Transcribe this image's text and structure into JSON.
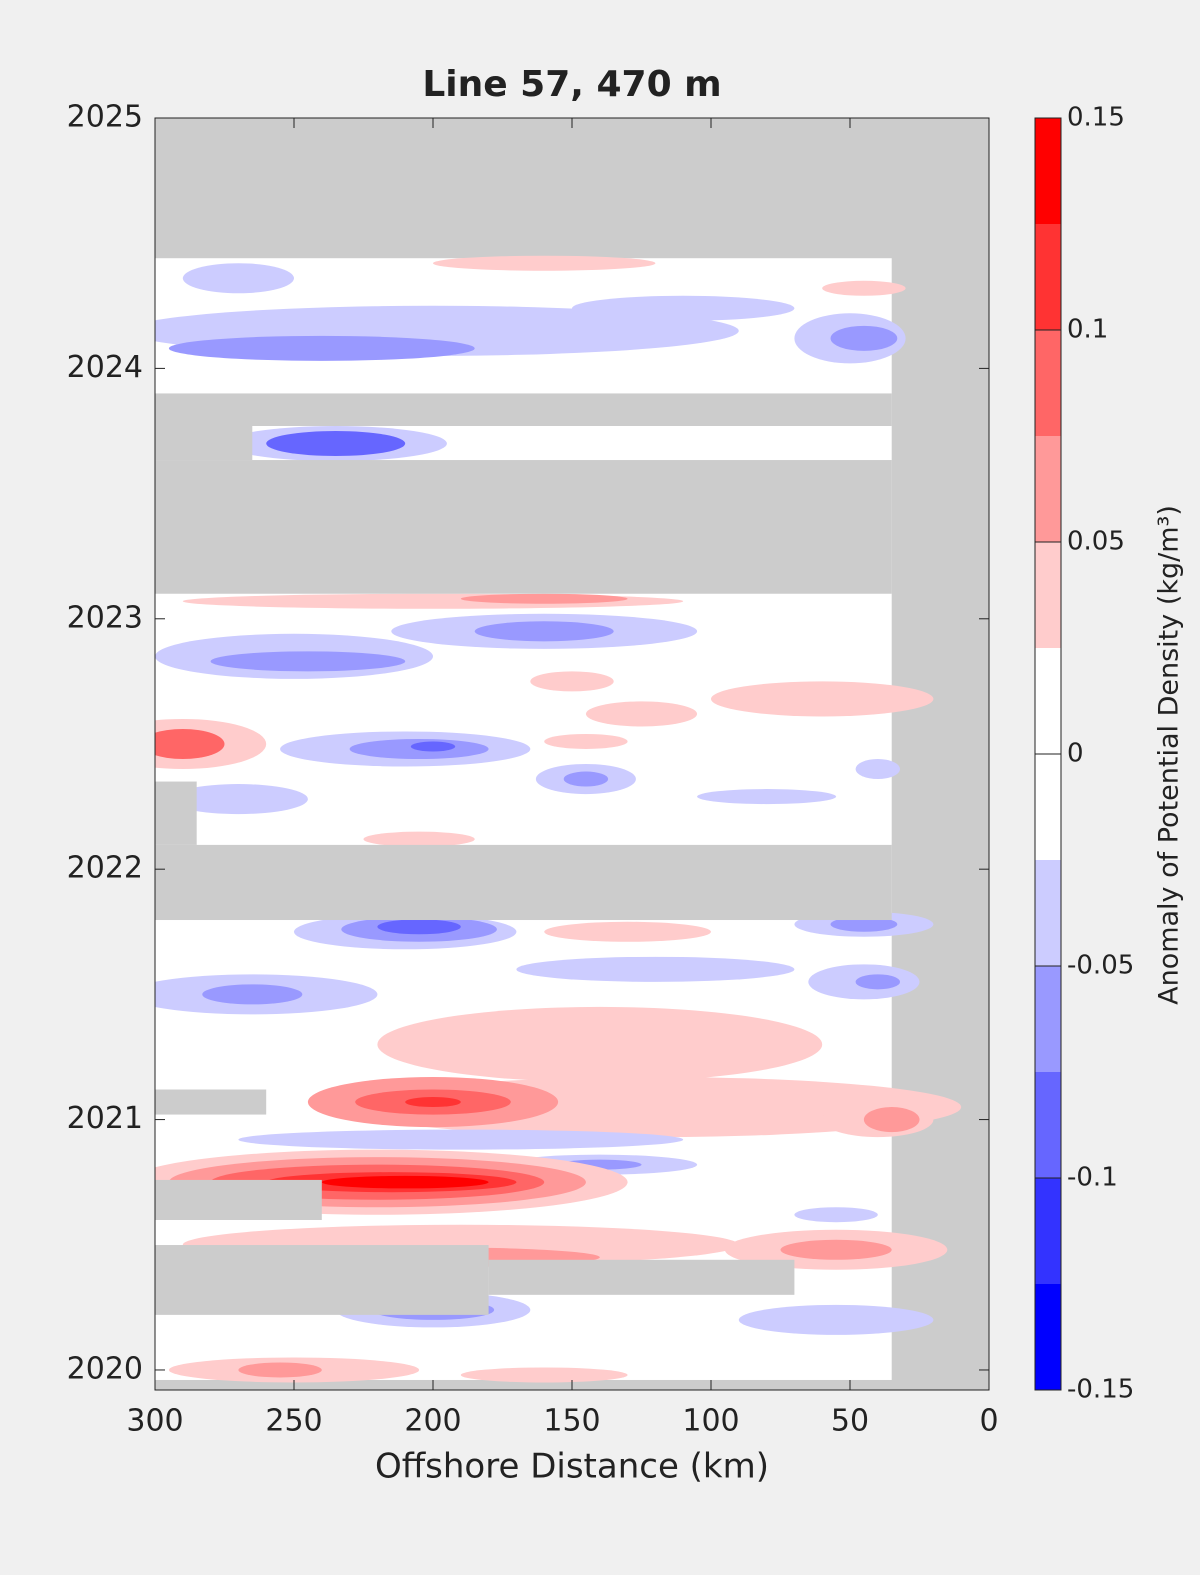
{
  "chart_data": {
    "type": "contourf",
    "title": "Line 57, 470 m",
    "xlabel": "Offshore Distance (km)",
    "xlim": [
      300,
      0
    ],
    "xticks": [
      300,
      250,
      200,
      150,
      100,
      50,
      0
    ],
    "ylim": [
      2019.92,
      2025
    ],
    "yticks": [
      2020,
      2021,
      2022,
      2023,
      2024,
      2025
    ],
    "colorbar": {
      "label": "Anomaly of Potential Density (kg/m³)",
      "clim": [
        -0.15,
        0.15
      ],
      "ticks": [
        -0.15,
        -0.1,
        -0.05,
        0,
        0.05,
        0.1,
        0.15
      ],
      "colors": [
        "#0000ff",
        "#3333ff",
        "#6666ff",
        "#9999ff",
        "#ccccff",
        "#ffffff",
        "#ffffff",
        "#ffcccc",
        "#ff9999",
        "#ff6666",
        "#ff3333",
        "#ff0000"
      ]
    },
    "nodata_color": "#cccccc",
    "coverage": {
      "x": [
        300,
        35
      ],
      "y": [
        2019.96,
        2024.44
      ]
    },
    "nodata": [
      {
        "x": [
          300,
          35
        ],
        "y": [
          2023.77,
          2023.9
        ]
      },
      {
        "x": [
          300,
          265
        ],
        "y": [
          2023.634,
          2023.77
        ]
      },
      {
        "x": [
          300,
          35
        ],
        "y": [
          2023.1,
          2023.634
        ]
      },
      {
        "x": [
          300,
          35
        ],
        "y": [
          2021.797,
          2022.097
        ]
      },
      {
        "x": [
          300,
          285
        ],
        "y": [
          2022.097,
          2022.35
        ]
      },
      {
        "x": [
          300,
          260
        ],
        "y": [
          2021.02,
          2021.12
        ]
      },
      {
        "x": [
          300,
          240
        ],
        "y": [
          2020.599,
          2020.759
        ]
      },
      {
        "x": [
          300,
          180
        ],
        "y": [
          2020.22,
          2020.499
        ]
      },
      {
        "x": [
          180,
          70
        ],
        "y": [
          2020.3,
          2020.44
        ]
      }
    ],
    "patches": [
      {
        "x": 200,
        "y": 2024.15,
        "rx": 110,
        "ry": 0.1,
        "value": -0.04
      },
      {
        "x": 240,
        "y": 2024.08,
        "rx": 55,
        "ry": 0.05,
        "value": -0.06
      },
      {
        "x": 270,
        "y": 2024.36,
        "rx": 20,
        "ry": 0.06,
        "value": -0.04
      },
      {
        "x": 50,
        "y": 2024.12,
        "rx": 20,
        "ry": 0.1,
        "value": -0.04
      },
      {
        "x": 45,
        "y": 2024.12,
        "rx": 12,
        "ry": 0.05,
        "value": -0.06
      },
      {
        "x": 160,
        "y": 2024.42,
        "rx": 40,
        "ry": 0.03,
        "value": 0.04
      },
      {
        "x": 45,
        "y": 2024.32,
        "rx": 15,
        "ry": 0.03,
        "value": 0.04
      },
      {
        "x": 110,
        "y": 2024.24,
        "rx": 40,
        "ry": 0.05,
        "value": -0.04
      },
      {
        "x": 235,
        "y": 2023.7,
        "rx": 40,
        "ry": 0.07,
        "value": -0.04
      },
      {
        "x": 235,
        "y": 2023.7,
        "rx": 25,
        "ry": 0.05,
        "value": -0.09
      },
      {
        "x": 200,
        "y": 2023.07,
        "rx": 90,
        "ry": 0.03,
        "value": 0.04
      },
      {
        "x": 160,
        "y": 2023.08,
        "rx": 30,
        "ry": 0.02,
        "value": 0.06
      },
      {
        "x": 160,
        "y": 2022.95,
        "rx": 55,
        "ry": 0.07,
        "value": -0.04
      },
      {
        "x": 160,
        "y": 2022.95,
        "rx": 25,
        "ry": 0.04,
        "value": -0.06
      },
      {
        "x": 250,
        "y": 2022.85,
        "rx": 50,
        "ry": 0.09,
        "value": -0.04
      },
      {
        "x": 245,
        "y": 2022.83,
        "rx": 35,
        "ry": 0.04,
        "value": -0.06
      },
      {
        "x": 290,
        "y": 2022.5,
        "rx": 30,
        "ry": 0.1,
        "value": 0.04
      },
      {
        "x": 290,
        "y": 2022.5,
        "rx": 15,
        "ry": 0.06,
        "value": 0.08
      },
      {
        "x": 210,
        "y": 2022.48,
        "rx": 45,
        "ry": 0.07,
        "value": -0.04
      },
      {
        "x": 205,
        "y": 2022.48,
        "rx": 25,
        "ry": 0.04,
        "value": -0.06
      },
      {
        "x": 200,
        "y": 2022.49,
        "rx": 8,
        "ry": 0.02,
        "value": -0.09
      },
      {
        "x": 150,
        "y": 2022.75,
        "rx": 15,
        "ry": 0.04,
        "value": 0.04
      },
      {
        "x": 60,
        "y": 2022.68,
        "rx": 40,
        "ry": 0.07,
        "value": 0.04
      },
      {
        "x": 125,
        "y": 2022.62,
        "rx": 20,
        "ry": 0.05,
        "value": 0.04
      },
      {
        "x": 145,
        "y": 2022.51,
        "rx": 15,
        "ry": 0.03,
        "value": 0.04
      },
      {
        "x": 145,
        "y": 2022.36,
        "rx": 18,
        "ry": 0.06,
        "value": -0.04
      },
      {
        "x": 145,
        "y": 2022.36,
        "rx": 8,
        "ry": 0.03,
        "value": -0.06
      },
      {
        "x": 80,
        "y": 2022.29,
        "rx": 25,
        "ry": 0.03,
        "value": -0.04
      },
      {
        "x": 270,
        "y": 2022.28,
        "rx": 25,
        "ry": 0.06,
        "value": -0.04
      },
      {
        "x": 40,
        "y": 2022.4,
        "rx": 8,
        "ry": 0.04,
        "value": -0.04
      },
      {
        "x": 205,
        "y": 2022.12,
        "rx": 20,
        "ry": 0.03,
        "value": 0.04
      },
      {
        "x": 210,
        "y": 2021.75,
        "rx": 40,
        "ry": 0.07,
        "value": -0.04
      },
      {
        "x": 205,
        "y": 2021.76,
        "rx": 28,
        "ry": 0.05,
        "value": -0.06
      },
      {
        "x": 205,
        "y": 2021.77,
        "rx": 15,
        "ry": 0.03,
        "value": -0.09
      },
      {
        "x": 120,
        "y": 2021.6,
        "rx": 50,
        "ry": 0.05,
        "value": -0.04
      },
      {
        "x": 45,
        "y": 2021.78,
        "rx": 25,
        "ry": 0.05,
        "value": -0.04
      },
      {
        "x": 45,
        "y": 2021.78,
        "rx": 12,
        "ry": 0.03,
        "value": -0.06
      },
      {
        "x": 130,
        "y": 2021.75,
        "rx": 30,
        "ry": 0.04,
        "value": 0.04
      },
      {
        "x": 265,
        "y": 2021.5,
        "rx": 45,
        "ry": 0.08,
        "value": -0.04
      },
      {
        "x": 265,
        "y": 2021.5,
        "rx": 18,
        "ry": 0.04,
        "value": -0.06
      },
      {
        "x": 45,
        "y": 2021.55,
        "rx": 20,
        "ry": 0.07,
        "value": -0.04
      },
      {
        "x": 40,
        "y": 2021.55,
        "rx": 8,
        "ry": 0.03,
        "value": -0.06
      },
      {
        "x": 140,
        "y": 2021.3,
        "rx": 80,
        "ry": 0.15,
        "value": 0.04
      },
      {
        "x": 120,
        "y": 2021.05,
        "rx": 110,
        "ry": 0.12,
        "value": 0.04
      },
      {
        "x": 200,
        "y": 2021.07,
        "rx": 45,
        "ry": 0.1,
        "value": 0.06
      },
      {
        "x": 200,
        "y": 2021.07,
        "rx": 28,
        "ry": 0.05,
        "value": 0.09
      },
      {
        "x": 200,
        "y": 2021.07,
        "rx": 10,
        "ry": 0.02,
        "value": 0.11
      },
      {
        "x": 40,
        "y": 2021.0,
        "rx": 20,
        "ry": 0.07,
        "value": 0.04
      },
      {
        "x": 35,
        "y": 2021.0,
        "rx": 10,
        "ry": 0.05,
        "value": 0.06
      },
      {
        "x": 190,
        "y": 2020.92,
        "rx": 80,
        "ry": 0.04,
        "value": -0.04
      },
      {
        "x": 140,
        "y": 2020.82,
        "rx": 35,
        "ry": 0.04,
        "value": -0.04
      },
      {
        "x": 140,
        "y": 2020.82,
        "rx": 15,
        "ry": 0.02,
        "value": -0.06
      },
      {
        "x": 220,
        "y": 2020.75,
        "rx": 90,
        "ry": 0.13,
        "value": 0.04
      },
      {
        "x": 220,
        "y": 2020.75,
        "rx": 75,
        "ry": 0.1,
        "value": 0.06
      },
      {
        "x": 220,
        "y": 2020.75,
        "rx": 60,
        "ry": 0.07,
        "value": 0.09
      },
      {
        "x": 215,
        "y": 2020.75,
        "rx": 45,
        "ry": 0.04,
        "value": 0.11
      },
      {
        "x": 210,
        "y": 2020.75,
        "rx": 30,
        "ry": 0.025,
        "value": 0.13
      },
      {
        "x": 190,
        "y": 2020.5,
        "rx": 100,
        "ry": 0.08,
        "value": 0.04
      },
      {
        "x": 200,
        "y": 2020.45,
        "rx": 60,
        "ry": 0.04,
        "value": 0.06
      },
      {
        "x": 55,
        "y": 2020.48,
        "rx": 40,
        "ry": 0.08,
        "value": 0.04
      },
      {
        "x": 55,
        "y": 2020.48,
        "rx": 20,
        "ry": 0.04,
        "value": 0.06
      },
      {
        "x": 55,
        "y": 2020.62,
        "rx": 15,
        "ry": 0.03,
        "value": -0.04
      },
      {
        "x": 200,
        "y": 2020.24,
        "rx": 35,
        "ry": 0.07,
        "value": -0.04
      },
      {
        "x": 200,
        "y": 2020.24,
        "rx": 22,
        "ry": 0.04,
        "value": -0.06
      },
      {
        "x": 55,
        "y": 2020.2,
        "rx": 35,
        "ry": 0.06,
        "value": -0.04
      },
      {
        "x": 250,
        "y": 2020.0,
        "rx": 45,
        "ry": 0.05,
        "value": 0.04
      },
      {
        "x": 255,
        "y": 2020.0,
        "rx": 15,
        "ry": 0.03,
        "value": 0.06
      },
      {
        "x": 160,
        "y": 2019.98,
        "rx": 30,
        "ry": 0.03,
        "value": 0.04
      }
    ]
  }
}
